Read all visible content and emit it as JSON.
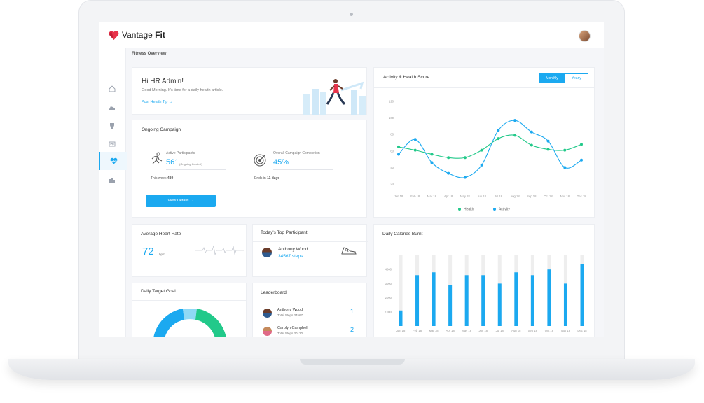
{
  "app": {
    "brand_light": "Vantage",
    "brand_bold": "Fit",
    "breadcrumb": "Fitness Overview"
  },
  "welcome": {
    "greeting": "Hi HR Admin!",
    "message": "Good Morning. It's time for a daily health article.",
    "link": "Post Health Tip",
    "link_arrow": "→"
  },
  "campaign": {
    "title": "Ongoing Campaign",
    "participants_label": "Active Participants",
    "participants_value": "561",
    "participants_note": "(Ongoing Contest)",
    "completion_label": "Overall Campaign Completion",
    "completion_value": "45%",
    "this_week_label": "This week",
    "this_week_value": "489",
    "ends_label": "Ends in",
    "ends_value": "11 days",
    "button": "View Details",
    "button_arrow": "→"
  },
  "heart_rate": {
    "title": "Average Heart Rate",
    "value": "72",
    "unit": "bpm"
  },
  "top_participant": {
    "title": "Today's Top Participant",
    "name": "Anthony Wood",
    "steps": "34567 steps"
  },
  "daily_goal": {
    "title": "Daily Target Goal"
  },
  "leaderboard": {
    "title": "Leaderboard",
    "rows": [
      {
        "name": "Anthony Wood",
        "sub": "Total Steps 34567",
        "rank": "1"
      },
      {
        "name": "Carolyn Campbell",
        "sub": "Total Steps 30120",
        "rank": "2"
      }
    ]
  },
  "score_panel": {
    "title": "Activity & Health Score",
    "tabs": [
      "Monthly",
      "Yearly"
    ],
    "active_tab": "Monthly"
  },
  "calories_panel": {
    "title": "Daily Calories Burnt"
  },
  "colors": {
    "accent": "#1ba9f0",
    "green": "#22c98a",
    "heart": "#e8334a",
    "donut_blue": "#1ba9f0",
    "donut_light": "#8fd9f5",
    "donut_green": "#22c98a"
  },
  "chart_data": [
    {
      "type": "line",
      "title": "Activity & Health Score",
      "x": [
        "Jan 18",
        "Feb 18",
        "Mar 18",
        "Apr 18",
        "May 18",
        "Jun 18",
        "Jul 18",
        "Aug 18",
        "Sep 18",
        "Oct 18",
        "Nov 18",
        "Dec 18"
      ],
      "ylim": [
        20,
        120
      ],
      "yticks": [
        20,
        40,
        60,
        80,
        100,
        120
      ],
      "series": [
        {
          "name": "Health",
          "values": [
            65,
            61,
            56,
            52,
            52,
            61,
            75,
            79,
            67,
            62,
            61,
            68
          ]
        },
        {
          "name": "Activity",
          "values": [
            56,
            74,
            46,
            33,
            28,
            43,
            85,
            97,
            83,
            72,
            40,
            49
          ]
        }
      ],
      "legend": "bottom",
      "grid": false
    },
    {
      "type": "bar",
      "title": "Daily Calories Burnt",
      "categories": [
        "Jan 18",
        "Feb 18",
        "Mar 18",
        "Apr 18",
        "May 18",
        "Jun 18",
        "Jul 18",
        "Aug 18",
        "Sep 18",
        "Oct 18",
        "Nov 18",
        "Dec 18"
      ],
      "values": [
        1100,
        3600,
        3800,
        2900,
        3600,
        3600,
        3000,
        3800,
        3600,
        4000,
        3000,
        4400
      ],
      "ylim": [
        0,
        5000
      ],
      "yticks": [
        1000,
        2000,
        3000,
        4000
      ],
      "grid": false
    }
  ]
}
